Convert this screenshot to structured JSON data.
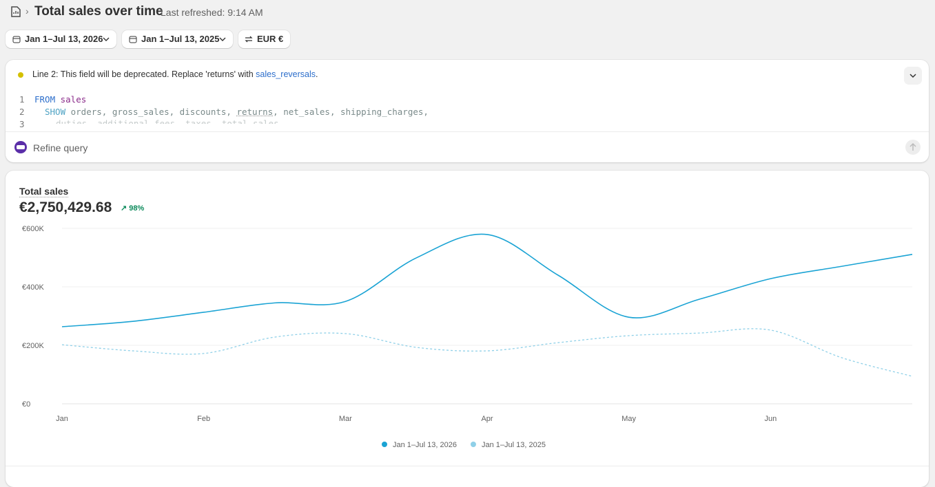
{
  "header": {
    "title": "Total sales over time",
    "refreshed": "Last refreshed: 9:14 AM"
  },
  "toolbar": {
    "date_range": "Jan 1–Jul 13, 2026",
    "compare_range": "Jan 1–Jul 13, 2025",
    "currency": "EUR €"
  },
  "editor": {
    "warning": {
      "text": "Line 2: This field will be deprecated. Replace 'returns' with ",
      "link": "sales_reversals",
      "end": "."
    },
    "lines": [
      {
        "number": "1",
        "tokens": [
          "FROM",
          " sales"
        ]
      },
      {
        "number": "2",
        "tokens": [
          "SHOW",
          " orders, gross_sales, discounts, ",
          "returns",
          ", net_sales, shipping_charges,"
        ]
      },
      {
        "number": "3",
        "tokens": [
          "duties, additional_fees, taxes, total_sales"
        ]
      }
    ],
    "prompt_placeholder": "Refine query"
  },
  "metric": {
    "label": "Total sales",
    "value": "€2,750,429.68",
    "change": "98%"
  },
  "chart_data": {
    "type": "line",
    "categories": [
      "Jan",
      null,
      "Feb",
      null,
      "Mar",
      null,
      "Apr",
      null,
      "May",
      null,
      "Jun",
      null,
      null
    ],
    "series": [
      {
        "name": "Jan 1–Jul 13, 2026",
        "color": "#1aa3d4",
        "dashed": false,
        "values": [
          263500,
          282000,
          313000,
          345000,
          350000,
          499000,
          579000,
          440000,
          296000,
          358000,
          428000,
          470000,
          511000
        ]
      },
      {
        "name": "Jan 1–Jul 13, 2025",
        "color": "#8fd0e8",
        "dashed": true,
        "values": [
          202000,
          181000,
          172000,
          228000,
          240000,
          193000,
          181000,
          209000,
          233000,
          242000,
          252000,
          158000,
          94000
        ]
      }
    ],
    "ylim": [
      0,
      600000
    ],
    "yticks": [
      {
        "value": 0,
        "label": "€0"
      },
      {
        "value": 200000,
        "label": "€200K"
      },
      {
        "value": 400000,
        "label": "€400K"
      },
      {
        "value": 600000,
        "label": "€600K"
      }
    ],
    "grid": true
  }
}
